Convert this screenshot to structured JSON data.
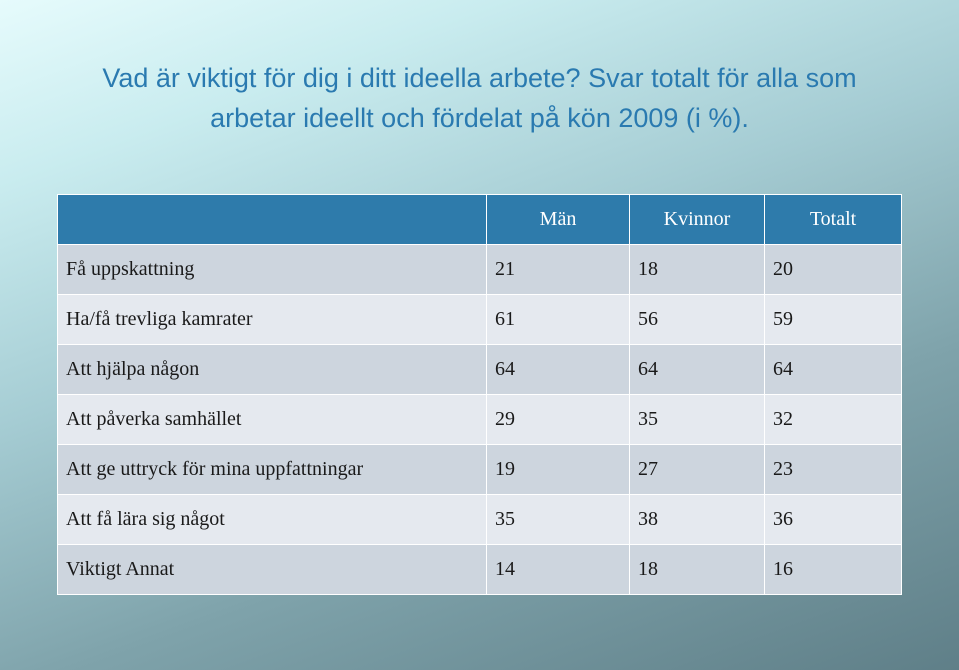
{
  "title": {
    "line1": "Vad är viktigt för dig i ditt ideella arbete? Svar totalt för alla som",
    "line2": "arbetar ideellt och fördelat på kön 2009 (i %)."
  },
  "table": {
    "headers": [
      "",
      "Män",
      "Kvinnor",
      "Totalt"
    ],
    "rows": [
      {
        "label": "Få uppskattning",
        "man": "21",
        "kvinnor": "18",
        "totalt": "20"
      },
      {
        "label": "Ha/få trevliga kamrater",
        "man": "61",
        "kvinnor": "56",
        "totalt": "59"
      },
      {
        "label": "Att hjälpa någon",
        "man": "64",
        "kvinnor": "64",
        "totalt": "64"
      },
      {
        "label": "Att påverka samhället",
        "man": "29",
        "kvinnor": "35",
        "totalt": "32"
      },
      {
        "label": "Att ge uttryck för mina uppfattningar",
        "man": "19",
        "kvinnor": "27",
        "totalt": "23"
      },
      {
        "label": "Att få lära sig något",
        "man": "35",
        "kvinnor": "38",
        "totalt": "36"
      },
      {
        "label": "Viktigt Annat",
        "man": "14",
        "kvinnor": "18",
        "totalt": "16"
      }
    ]
  },
  "colors": {
    "title": "#2a7ab0",
    "header_bg": "#2e7bab",
    "row_odd": "#cdd5de",
    "row_even": "#e5e9ef"
  }
}
